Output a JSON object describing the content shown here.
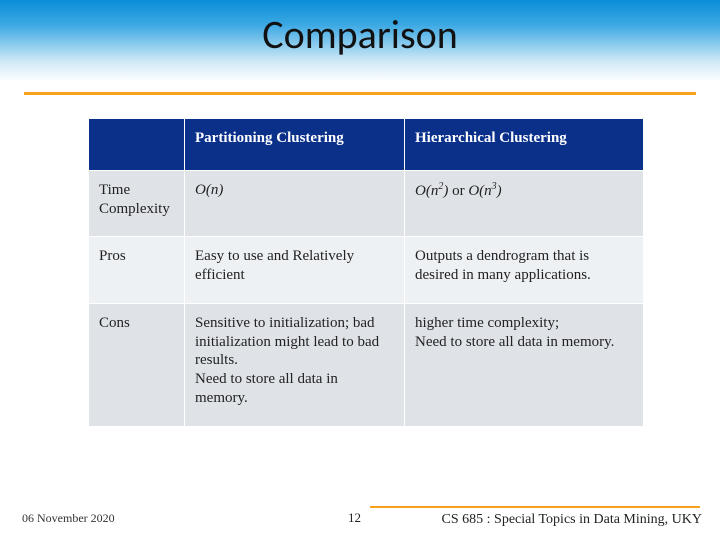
{
  "title": "Comparison",
  "table": {
    "header_bg": "#0a308a",
    "header_fg": "#ffffff",
    "row_bg_a": "#dfe3e8",
    "row_bg_b": "#eef1f4",
    "columns": [
      "",
      "Partitioning Clustering",
      "Hierarchical Clustering"
    ],
    "rows": [
      {
        "label": "Time Complexity",
        "col1_html": "<span class='ital'>O(n)</span>",
        "col2_html": "<span class='ital'>O(n<sup>2</sup>)</span> or <span class='ital'>O(n<sup>3</sup>)</span>"
      },
      {
        "label": "Pros",
        "col1_html": "Easy to use and Relatively efficient",
        "col2_html": "Outputs a dendrogram that is desired in many applications."
      },
      {
        "label": "Cons",
        "col1_html": "Sensitive to initialization; bad initialization might lead to bad results.<br>Need to store all data in memory.",
        "col2_html": "higher time complexity;<br>Need to store all data in memory."
      }
    ]
  },
  "footer": {
    "date": "06 November 2020",
    "page": "12",
    "course": "CS 685 : Special Topics in Data Mining, UKY"
  },
  "colors": {
    "orange": "#f6a21a",
    "gradient_top": "#0a8ed9"
  }
}
